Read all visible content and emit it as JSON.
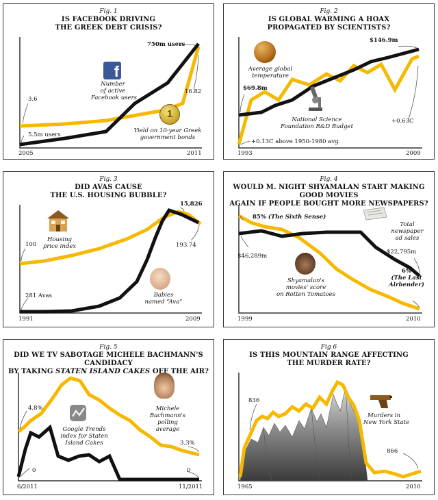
{
  "colors": {
    "yellow": "#f6b800",
    "black": "#111111",
    "frame": "#333333"
  },
  "charts": [
    {
      "fig": "Fig. 1",
      "title_lines": [
        "IS FACEBOOK DRIVING",
        "THE GREEK DEBT CRISIS?"
      ],
      "icons": [
        "facebook-icon",
        "euro-coin-icon"
      ],
      "labels": {
        "start_year": "2005",
        "end_year": "2011",
        "black_start": "5.5m users",
        "black_end": "750m users",
        "yellow_start": "3.6",
        "yellow_end": "16.82",
        "black_caption": [
          "Number",
          "of active",
          "Facebook users"
        ],
        "yellow_caption": [
          "Yield on 10-year Greek",
          "government bonds"
        ]
      }
    },
    {
      "fig": "Fig. 2",
      "title_lines": [
        "IS GLOBAL WARMING A HOAX",
        "PROPAGATED BY SCIENTISTS?"
      ],
      "icons": [
        "globe-icon",
        "microscope-icon"
      ],
      "labels": {
        "start_year": "1993",
        "end_year": "2009",
        "black_start": "$69.8m",
        "black_end": "$146.9m",
        "yellow_start": "+0.13C above 1950-1980 avg.",
        "yellow_end": "+0.63C",
        "yellow_caption": [
          "Average global",
          "temperature"
        ],
        "black_caption": [
          "National Science",
          "Foundation R&D Budget"
        ]
      }
    },
    {
      "fig": "Fig. 3",
      "title_lines": [
        "DID AVAS CAUSE",
        "THE U.S. HOUSING BUBBLE?"
      ],
      "icons": [
        "house-icon",
        "baby-icon"
      ],
      "labels": {
        "start_year": "1991",
        "end_year": "2009",
        "yellow_start": "100",
        "yellow_end": "193.74",
        "black_start": "281 Avas",
        "black_end": "15,826",
        "yellow_caption": [
          "Housing",
          "price index"
        ],
        "black_caption": [
          "Babies",
          "named “Ava”"
        ]
      }
    },
    {
      "fig": "Fig. 4",
      "title_lines": [
        "WOULD M. NIGHT SHYAMALAN START MAKING GOOD MOVIES",
        "AGAIN IF PEOPLE BOUGHT MORE NEWSPAPERS?"
      ],
      "icons": [
        "newspaper-icon",
        "director-portrait-icon"
      ],
      "labels": {
        "start_year": "1999",
        "end_year": "2010",
        "yellow_start": "85% ",
        "yellow_start_movie": "(The Sixth Sense)",
        "yellow_end": "6%",
        "yellow_end_movie": [
          "(The Last",
          "Airbender)"
        ],
        "black_start": "$46,289m",
        "black_end": "$22,795m",
        "black_caption": [
          "Total",
          "newspaper",
          "ad sales"
        ],
        "yellow_caption": [
          "Shyamalan's",
          "movies' score",
          "on Rotten Tomatoes"
        ]
      }
    },
    {
      "fig": "Fig. 5",
      "title_lines": [
        "DID WE TV SABOTAGE MICHELE BACHMANN'S CANDIDACY"
      ],
      "title_line2_pre": "BY TAKING ",
      "title_line2_em": "STATEN ISLAND CAKES",
      "title_line2_post": " OFF THE AIR?",
      "icons": [
        "google-trends-icon",
        "bachmann-portrait-icon"
      ],
      "labels": {
        "start_date": "6/2011",
        "end_date": "11/2011",
        "yellow_start": "4.8%",
        "yellow_end": "3.3%",
        "black_start": "0",
        "black_end": "0",
        "black_caption": [
          "Google Trends",
          "index for Staten",
          "Island Cakes"
        ],
        "yellow_caption": [
          "Michele",
          "Bachmann's",
          "polling",
          "average"
        ]
      }
    },
    {
      "fig": "Fig 6",
      "title_lines": [
        "IS THIS MOUNTAIN RANGE AFFECTING",
        "THE MURDER RATE?"
      ],
      "icons": [
        "pistol-icon",
        "mountain-photo-icon"
      ],
      "labels": {
        "start_year": "1965",
        "end_year": "2010",
        "yellow_start": "836",
        "yellow_end": "866",
        "yellow_caption": [
          "Murders in",
          "New York State"
        ]
      }
    }
  ],
  "chart_data": [
    {
      "type": "line",
      "title": "IS FACEBOOK DRIVING THE GREEK DEBT CRISIS?",
      "x": [
        2005,
        2006,
        2007,
        2008,
        2009,
        2010,
        2011
      ],
      "series": [
        {
          "name": "Number of active Facebook users",
          "values": [
            5.5,
            12,
            50,
            100,
            360,
            550,
            750
          ]
        },
        {
          "name": "Yield on 10-year Greek government bonds",
          "values": [
            3.6,
            3.9,
            4.3,
            4.8,
            5.5,
            9.0,
            16.82
          ]
        }
      ]
    },
    {
      "type": "line",
      "title": "IS GLOBAL WARMING A HOAX PROPAGATED BY SCIENTISTS?",
      "x": [
        1993,
        1995,
        1997,
        1999,
        2001,
        2003,
        2005,
        2007,
        2009
      ],
      "series": [
        {
          "name": "Average global temperature",
          "values": [
            0.13,
            0.45,
            0.42,
            0.5,
            0.58,
            0.6,
            0.65,
            0.55,
            0.63
          ]
        },
        {
          "name": "National Science Foundation R&D Budget",
          "values": [
            69.8,
            72,
            80,
            95,
            110,
            125,
            135,
            142,
            146.9
          ]
        }
      ]
    },
    {
      "type": "line",
      "title": "DID AVAS CAUSE THE U.S. HOUSING BUBBLE?",
      "x": [
        1991,
        1993,
        1995,
        1997,
        1999,
        2001,
        2003,
        2005,
        2007,
        2009
      ],
      "series": [
        {
          "name": "Housing price index",
          "values": [
            100,
            102,
            108,
            115,
            125,
            140,
            165,
            200,
            225,
            193.74
          ]
        },
        {
          "name": "Babies named “Ava”",
          "values": [
            281,
            300,
            400,
            600,
            1000,
            2200,
            6000,
            12000,
            16500,
            15826
          ]
        }
      ]
    },
    {
      "type": "line",
      "title": "WOULD M. NIGHT SHYAMALAN START MAKING GOOD MOVIES AGAIN IF PEOPLE BOUGHT MORE NEWSPAPERS?",
      "x": [
        1999,
        2000,
        2002,
        2004,
        2006,
        2008,
        2010
      ],
      "series": [
        {
          "name": "Total newspaper ad sales",
          "values": [
            46289,
            48670,
            44102,
            46703,
            49275,
            37848,
            22795
          ]
        },
        {
          "name": "Shyamalan's movies' score on Rotten Tomatoes",
          "values": [
            85,
            68,
            74,
            43,
            24,
            18,
            6
          ]
        }
      ]
    },
    {
      "type": "line",
      "title": "DID WE TV SABOTAGE MICHELE BACHMANN'S CANDIDACY BY TAKING STATEN ISLAND CAKES OFF THE AIR?",
      "x": [
        "6/2011",
        "7/2011",
        "8/2011",
        "9/2011",
        "10/2011",
        "11/2011"
      ],
      "series": [
        {
          "name": "Michele Bachmann's polling average",
          "values": [
            4.8,
            9.5,
            12.0,
            7.5,
            5.5,
            3.3
          ]
        },
        {
          "name": "Google Trends index for Staten Island Cakes",
          "values": [
            0,
            90,
            55,
            45,
            0,
            0
          ]
        }
      ]
    },
    {
      "type": "line",
      "title": "IS THIS MOUNTAIN RANGE AFFECTING THE MURDER RATE?",
      "x": [
        1965,
        1970,
        1975,
        1980,
        1985,
        1990,
        1995,
        2000,
        2005,
        2010
      ],
      "series": [
        {
          "name": "Murders in New York State",
          "values": [
            836,
            1680,
            1800,
            2220,
            1680,
            2600,
            1550,
            952,
            874,
            866
          ]
        }
      ]
    }
  ]
}
